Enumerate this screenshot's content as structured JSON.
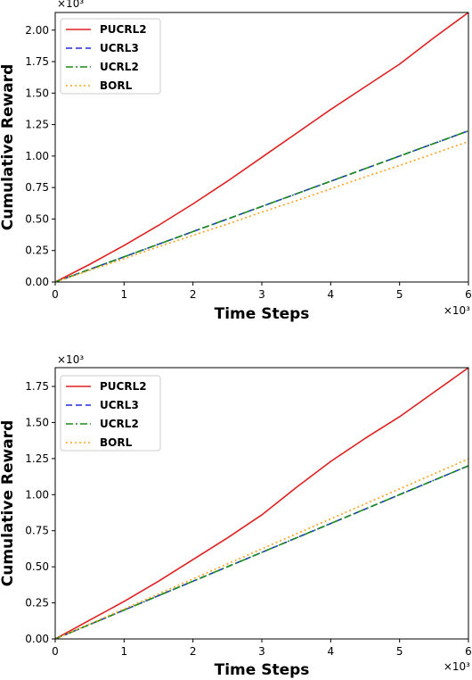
{
  "chart_data": [
    {
      "type": "line",
      "title": "",
      "xlabel": "Time Steps",
      "ylabel": "Cumulative Reward",
      "x_multiplier": "×10³",
      "y_multiplier": "×10³",
      "xlim": [
        0,
        6
      ],
      "ylim": [
        0,
        2.14
      ],
      "xticks": [
        "0",
        "1",
        "2",
        "3",
        "4",
        "5",
        "6"
      ],
      "xtick_values": [
        0,
        1,
        2,
        3,
        4,
        5,
        6
      ],
      "yticks": [
        "0.00",
        "0.25",
        "0.50",
        "0.75",
        "1.00",
        "1.25",
        "1.50",
        "1.75",
        "2.00"
      ],
      "ytick_values": [
        0,
        0.25,
        0.5,
        0.75,
        1.0,
        1.25,
        1.5,
        1.75,
        2.0
      ],
      "grid": false,
      "legend_position": "top-left",
      "x": [
        0,
        0.5,
        1,
        1.5,
        2,
        2.5,
        3,
        3.5,
        4,
        4.5,
        5,
        5.5,
        6
      ],
      "series": [
        {
          "name": "PUCRL2",
          "color": "#e02020",
          "style": "solid",
          "values": [
            0,
            0.14,
            0.29,
            0.45,
            0.62,
            0.8,
            0.99,
            1.18,
            1.37,
            1.55,
            1.73,
            1.94,
            2.14
          ]
        },
        {
          "name": "UCRL3",
          "color": "#1f2fd6",
          "style": "dashed",
          "values": [
            0,
            0.1,
            0.2,
            0.3,
            0.4,
            0.5,
            0.6,
            0.7,
            0.8,
            0.9,
            1.0,
            1.1,
            1.2
          ]
        },
        {
          "name": "UCRL2",
          "color": "#1a8a1a",
          "style": "dashdot",
          "values": [
            0,
            0.1,
            0.2,
            0.3,
            0.4,
            0.5,
            0.6,
            0.7,
            0.8,
            0.9,
            1.0,
            1.1,
            1.2
          ]
        },
        {
          "name": "BORL",
          "color": "#ff9f1a",
          "style": "dotted",
          "values": [
            0,
            0.092,
            0.185,
            0.28,
            0.37,
            0.46,
            0.555,
            0.645,
            0.74,
            0.835,
            0.925,
            1.02,
            1.115
          ]
        }
      ]
    },
    {
      "type": "line",
      "title": "",
      "xlabel": "Time Steps",
      "ylabel": "Cumulative Reward",
      "x_multiplier": "×10³",
      "y_multiplier": "×10³",
      "xlim": [
        0,
        6
      ],
      "ylim": [
        0,
        1.88
      ],
      "xticks": [
        "0",
        "1",
        "2",
        "3",
        "4",
        "5",
        "6"
      ],
      "xtick_values": [
        0,
        1,
        2,
        3,
        4,
        5,
        6
      ],
      "yticks": [
        "0.00",
        "0.25",
        "0.50",
        "0.75",
        "1.00",
        "1.25",
        "1.50",
        "1.75"
      ],
      "ytick_values": [
        0,
        0.25,
        0.5,
        0.75,
        1.0,
        1.25,
        1.5,
        1.75
      ],
      "grid": false,
      "legend_position": "top-left",
      "x": [
        0,
        0.5,
        1,
        1.5,
        2,
        2.5,
        3,
        3.5,
        4,
        4.5,
        5,
        5.5,
        6
      ],
      "series": [
        {
          "name": "PUCRL2",
          "color": "#e02020",
          "style": "solid",
          "values": [
            0,
            0.13,
            0.26,
            0.4,
            0.55,
            0.7,
            0.86,
            1.05,
            1.23,
            1.39,
            1.54,
            1.71,
            1.88
          ]
        },
        {
          "name": "UCRL3",
          "color": "#1f2fd6",
          "style": "dashed",
          "values": [
            0,
            0.1,
            0.2,
            0.3,
            0.4,
            0.5,
            0.6,
            0.7,
            0.8,
            0.9,
            1.0,
            1.1,
            1.2
          ]
        },
        {
          "name": "UCRL2",
          "color": "#1a8a1a",
          "style": "dashdot",
          "values": [
            0,
            0.1,
            0.2,
            0.3,
            0.4,
            0.5,
            0.6,
            0.7,
            0.8,
            0.9,
            1.0,
            1.1,
            1.2
          ]
        },
        {
          "name": "BORL",
          "color": "#ff9f1a",
          "style": "dotted",
          "values": [
            0,
            0.104,
            0.208,
            0.312,
            0.416,
            0.52,
            0.624,
            0.728,
            0.832,
            0.936,
            1.04,
            1.144,
            1.248
          ]
        }
      ]
    }
  ]
}
